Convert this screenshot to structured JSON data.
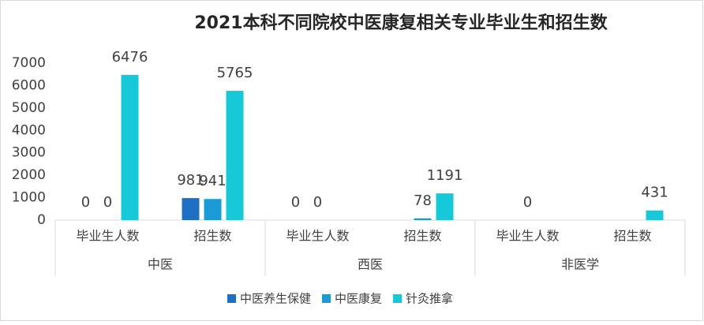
{
  "chart_data": {
    "type": "bar",
    "title": "2021本科不同院校中医康复相关专业毕业生和招生数",
    "categories": [
      "毕业生人数",
      "招生数",
      "毕业生人数",
      "招生数",
      "毕业生人数",
      "招生数"
    ],
    "groups": [
      "中医",
      "西医",
      "非医学"
    ],
    "series": [
      {
        "name": "中医养生保健",
        "color": "#1f6fc5",
        "values": [
          0,
          981,
          0,
          null,
          null,
          null
        ]
      },
      {
        "name": "中医康复",
        "color": "#1a9bd7",
        "values": [
          0,
          941,
          0,
          78,
          0,
          null
        ]
      },
      {
        "name": "针灸推拿",
        "color": "#17c8d8",
        "values": [
          6476,
          5765,
          null,
          1191,
          null,
          431
        ]
      }
    ],
    "ylim": [
      0,
      7000
    ],
    "yticks": [
      0,
      1000,
      2000,
      3000,
      4000,
      5000,
      6000,
      7000
    ],
    "grid": false
  }
}
